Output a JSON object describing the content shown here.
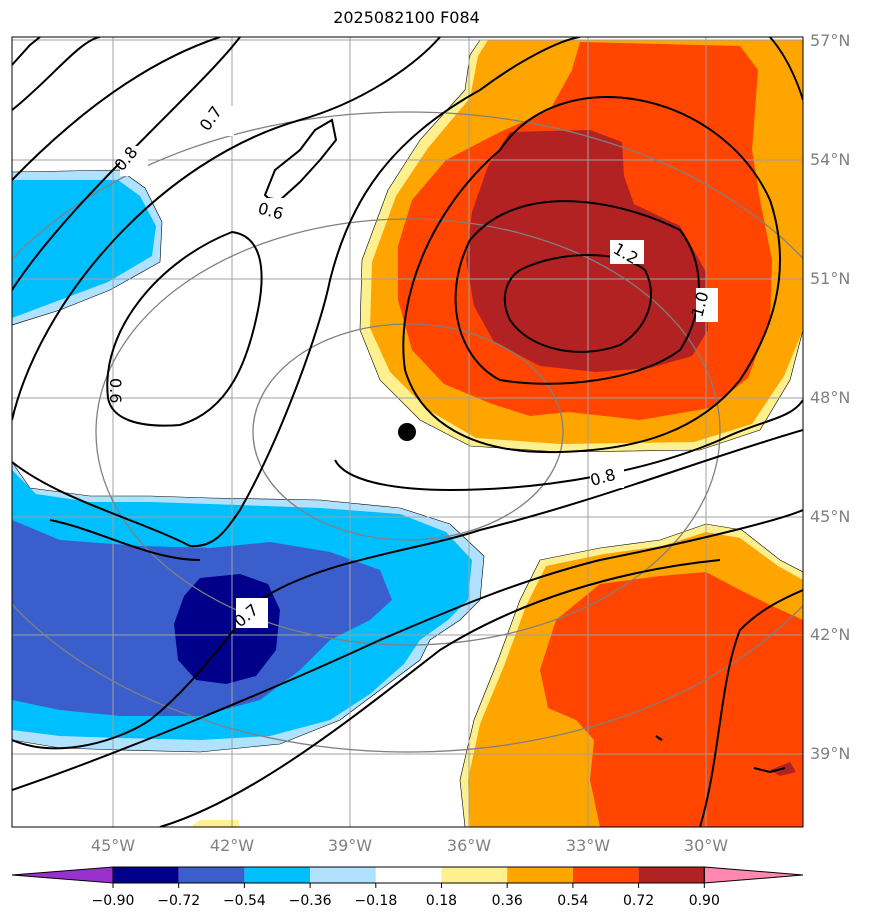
{
  "title": "2025082100 F084",
  "lat_labels": [
    "57°N",
    "54°N",
    "51°N",
    "48°N",
    "45°N",
    "42°N",
    "39°N"
  ],
  "lon_labels": [
    "45°W",
    "42°W",
    "39°W",
    "36°W",
    "33°W",
    "30°W"
  ],
  "contour_labels": [
    "0.6",
    "0.7",
    "0.8",
    "0.6",
    "1.2",
    "1.0",
    "0.8",
    "0.7"
  ],
  "colorbar": {
    "ticks": [
      "−0.90",
      "−0.72",
      "−0.54",
      "−0.36",
      "−0.18",
      "0.18",
      "0.36",
      "0.54",
      "0.72",
      "0.90"
    ],
    "colors": [
      "#9932cc",
      "#00008b",
      "#3a5fcd",
      "#00bfff",
      "#b0e2ff",
      "#ffffff",
      "#fff08f",
      "#ffa500",
      "#ff4500",
      "#b22222",
      "#ff88b0"
    ]
  },
  "marker": "station-dot"
}
